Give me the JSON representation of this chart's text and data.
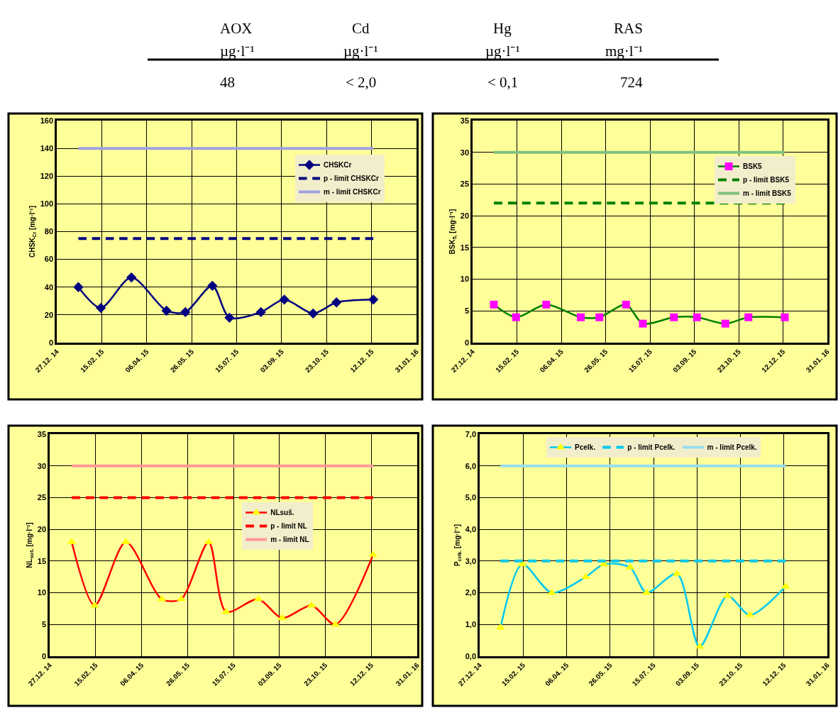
{
  "chart_data": [
    {
      "type": "other",
      "annotations": [
        "AOX",
        "Cd",
        "Hg",
        "RAS",
        "µg·l⁻¹",
        "µg·l⁻¹",
        "µg·l⁻¹",
        "mg·l⁻¹",
        "48",
        "< 2,0",
        "< 0,1",
        "724"
      ]
    },
    {
      "type": "line",
      "ylabel": "CHSK$_{Cr}$ [mg·l⁻¹]",
      "x": [
        "2015-01-20",
        "2015-02-14",
        "2015-03-20",
        "2015-04-28",
        "2015-05-19",
        "2015-06-18",
        "2015-07-07",
        "2015-08-11",
        "2015-09-06",
        "2015-10-08",
        "2015-11-03",
        "2015-12-14"
      ],
      "xlim": [
        "2014-12-27",
        "2016-01-31"
      ],
      "xticks": [
        {
          "value": "2014-12-27",
          "label": "27.12. 14"
        },
        {
          "value": "2015-02-15",
          "label": "15.02. 15"
        },
        {
          "value": "2015-04-06",
          "label": "06.04. 15"
        },
        {
          "value": "2015-05-26",
          "label": "26.05. 15"
        },
        {
          "value": "2015-07-15",
          "label": "15.07. 15"
        },
        {
          "value": "2015-09-03",
          "label": "03.09. 15"
        },
        {
          "value": "2015-10-23",
          "label": "23.10. 15"
        },
        {
          "value": "2015-12-12",
          "label": "12.12. 15"
        },
        {
          "value": "2016-01-31",
          "label": "31.01. 16"
        }
      ],
      "ylim": [
        0,
        160
      ],
      "yticks": [
        0,
        20,
        40,
        60,
        80,
        100,
        120,
        140,
        160
      ],
      "grid": true,
      "legend": "top right",
      "series": [
        {
          "name": "CHSKCr",
          "color": "#000080",
          "marker": "diamond",
          "values": [
            40,
            25,
            47,
            23,
            22,
            41,
            18,
            22,
            31,
            21,
            29,
            31
          ]
        },
        {
          "name": "p - limit CHSKCr",
          "color": "#000080",
          "line_style": "dashed",
          "x": [
            "2015-01-20",
            "2015-12-14"
          ],
          "values": [
            75,
            75
          ]
        },
        {
          "name": "m - limit CHSKCr",
          "color": "#a0a0e0",
          "line_style": "solid",
          "x": [
            "2015-01-20",
            "2015-12-14"
          ],
          "values": [
            140,
            140
          ]
        }
      ]
    },
    {
      "type": "line",
      "ylabel": "BSK$_{5,}$ [mg·l⁻¹]",
      "x": [
        "2015-01-20",
        "2015-02-14",
        "2015-03-20",
        "2015-04-28",
        "2015-05-19",
        "2015-06-18",
        "2015-07-07",
        "2015-08-11",
        "2015-09-06",
        "2015-10-08",
        "2015-11-03",
        "2015-12-14"
      ],
      "xlim": [
        "2014-12-27",
        "2016-01-31"
      ],
      "xticks": [
        {
          "value": "2014-12-27",
          "label": "27.12. 14"
        },
        {
          "value": "2015-02-15",
          "label": "15.02. 15"
        },
        {
          "value": "2015-04-06",
          "label": "06.04. 15"
        },
        {
          "value": "2015-05-26",
          "label": "26.05. 15"
        },
        {
          "value": "2015-07-15",
          "label": "15.07. 15"
        },
        {
          "value": "2015-09-03",
          "label": "03.09. 15"
        },
        {
          "value": "2015-10-23",
          "label": "23.10. 15"
        },
        {
          "value": "2015-12-12",
          "label": "12.12. 15"
        },
        {
          "value": "2016-01-31",
          "label": "31.01. 16"
        }
      ],
      "ylim": [
        0,
        35
      ],
      "yticks": [
        0,
        5,
        10,
        15,
        20,
        25,
        30,
        35
      ],
      "grid": true,
      "legend": "top right",
      "series": [
        {
          "name": "BSK5",
          "color": "#008000",
          "marker": "square",
          "colors": [
            "#ff00ff",
            "#ff00ff",
            "#ff00ff",
            "#ff00ff",
            "#ff00ff",
            "#ff00ff",
            "#ff00ff",
            "#ff00ff",
            "#ff00ff",
            "#ff00ff",
            "#ff00ff",
            "#ff00ff"
          ],
          "values": [
            6,
            4,
            6,
            4,
            4,
            6,
            3,
            4,
            4,
            3,
            4,
            4
          ]
        },
        {
          "name": "p - limit BSK5",
          "color": "#008000",
          "line_style": "dashed",
          "x": [
            "2015-01-20",
            "2015-12-14"
          ],
          "values": [
            22,
            22
          ]
        },
        {
          "name": "m - limit BSK5",
          "color": "#80c080",
          "line_style": "solid",
          "x": [
            "2015-01-20",
            "2015-12-14"
          ],
          "values": [
            30,
            30
          ]
        }
      ]
    },
    {
      "type": "line",
      "ylabel": "NL$_{suš.}$ [mg·l⁻¹]",
      "x": [
        "2015-01-20",
        "2015-02-14",
        "2015-03-20",
        "2015-04-28",
        "2015-05-19",
        "2015-06-18",
        "2015-07-07",
        "2015-08-11",
        "2015-09-06",
        "2015-10-08",
        "2015-11-03",
        "2015-12-14"
      ],
      "xlim": [
        "2014-12-27",
        "2016-01-31"
      ],
      "xticks": [
        {
          "value": "2014-12-27",
          "label": "27.12. 14"
        },
        {
          "value": "2015-02-15",
          "label": "15.02. 15"
        },
        {
          "value": "2015-04-06",
          "label": "06.04. 15"
        },
        {
          "value": "2015-05-26",
          "label": "26.05. 15"
        },
        {
          "value": "2015-07-15",
          "label": "15.07. 15"
        },
        {
          "value": "2015-09-03",
          "label": "03.09. 15"
        },
        {
          "value": "2015-10-23",
          "label": "23.10. 15"
        },
        {
          "value": "2015-12-12",
          "label": "12.12. 15"
        },
        {
          "value": "2016-01-31",
          "label": "31.01. 16"
        }
      ],
      "ylim": [
        0,
        35
      ],
      "yticks": [
        0,
        5,
        10,
        15,
        20,
        25,
        30,
        35
      ],
      "grid": true,
      "legend": "top",
      "series": [
        {
          "name": "NLsuš.",
          "color": "#ff0000",
          "marker": "triangle",
          "colors": [
            "#ffff00",
            "#ffff00",
            "#ffff00",
            "#ffff00",
            "#ffff00",
            "#ffff00",
            "#ffff00",
            "#ffff00",
            "#ffff00",
            "#ffff00",
            "#ffff00",
            "#ffff00"
          ],
          "values": [
            18,
            8,
            18,
            9,
            9,
            18,
            7,
            9,
            6,
            8,
            5,
            16
          ]
        },
        {
          "name": "p - limit NL",
          "color": "#ff0000",
          "line_style": "dashed",
          "x": [
            "2015-01-20",
            "2015-12-14"
          ],
          "values": [
            25,
            25
          ]
        },
        {
          "name": "m - limit NL",
          "color": "#ff9999",
          "line_style": "solid",
          "x": [
            "2015-01-20",
            "2015-12-14"
          ],
          "values": [
            30,
            30
          ]
        }
      ]
    },
    {
      "type": "line",
      "ylabel": "P$_{celk.}$ [mg·l⁻¹]",
      "x": [
        "2015-01-20",
        "2015-02-14",
        "2015-03-20",
        "2015-04-28",
        "2015-05-19",
        "2015-06-18",
        "2015-07-07",
        "2015-08-11",
        "2015-09-06",
        "2015-10-08",
        "2015-11-03",
        "2015-12-14"
      ],
      "xlim": [
        "2014-12-27",
        "2016-01-31"
      ],
      "xticks": [
        {
          "value": "2014-12-27",
          "label": "27.12. 14"
        },
        {
          "value": "2015-02-15",
          "label": "15.02. 15"
        },
        {
          "value": "2015-04-06",
          "label": "06.04. 15"
        },
        {
          "value": "2015-05-26",
          "label": "26.05. 15"
        },
        {
          "value": "2015-07-15",
          "label": "15.07. 15"
        },
        {
          "value": "2015-09-03",
          "label": "03.09. 15"
        },
        {
          "value": "2015-10-23",
          "label": "23.10. 15"
        },
        {
          "value": "2015-12-12",
          "label": "12.12. 15"
        },
        {
          "value": "2016-01-31",
          "label": "31.01. 16"
        }
      ],
      "ylim": [
        0,
        7
      ],
      "yticks": [
        {
          "value": 0,
          "label": "0,0"
        },
        {
          "value": 1,
          "label": "1,0"
        },
        {
          "value": 2,
          "label": "2,0"
        },
        {
          "value": 3,
          "label": "3,0"
        },
        {
          "value": 4,
          "label": "4,0"
        },
        {
          "value": 5,
          "label": "5,0"
        },
        {
          "value": 6,
          "label": "6,0"
        },
        {
          "value": 7,
          "label": "7,0"
        }
      ],
      "grid": true,
      "legend": "top",
      "series": [
        {
          "name": "Pcelk.",
          "color": "#00c8f0",
          "marker": "triangle",
          "colors": [
            "#ffff00",
            "#ffff00",
            "#ffff00",
            "#ffff00",
            "#ffff00",
            "#ffff00",
            "#ffff00",
            "#ffff00",
            "#ffff00",
            "#ffff00",
            "#ffff00",
            "#ffff00"
          ],
          "values": [
            0.9,
            2.9,
            2.0,
            2.5,
            2.9,
            2.8,
            2.0,
            2.6,
            0.3,
            1.9,
            1.3,
            2.2
          ]
        },
        {
          "name": "p - limit Pcelk.",
          "color": "#00c8f0",
          "line_style": "dashed",
          "x": [
            "2015-01-20",
            "2015-12-14"
          ],
          "values": [
            3.0,
            3.0
          ]
        },
        {
          "name": "m - limit Pcelk.",
          "color": "#99ddee",
          "line_style": "solid",
          "x": [
            "2015-01-20",
            "2015-12-14"
          ],
          "values": [
            6.0,
            6.0
          ]
        }
      ]
    }
  ]
}
